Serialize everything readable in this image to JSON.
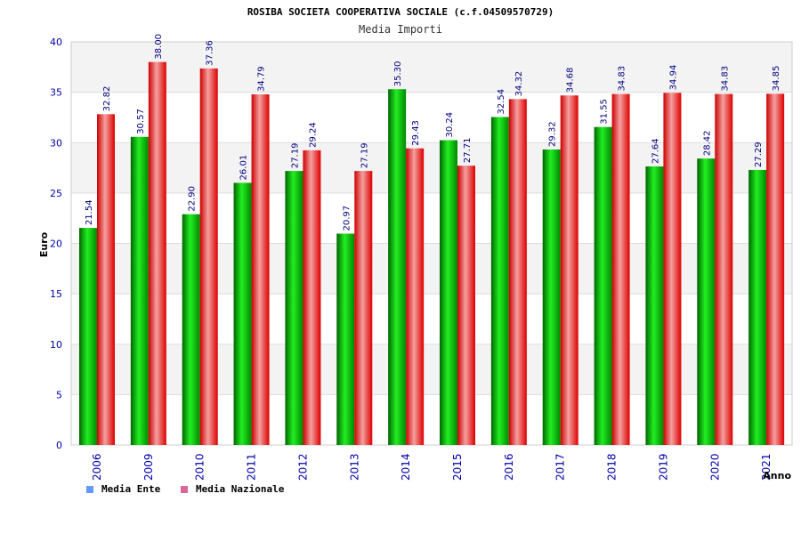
{
  "chart_data": {
    "type": "bar",
    "title": "ROSIBA SOCIETA COOPERATIVA SOCIALE (c.f.04509570729)",
    "subtitle": "Media Importi",
    "xlabel": "Anno",
    "ylabel": "Euro",
    "ylim": [
      0,
      40
    ],
    "yticks": [
      0,
      5,
      10,
      15,
      20,
      25,
      30,
      35,
      40
    ],
    "grid": true,
    "legend_position": "bottom-left",
    "categories": [
      "2006",
      "2009",
      "2010",
      "2011",
      "2012",
      "2013",
      "2014",
      "2015",
      "2016",
      "2017",
      "2018",
      "2019",
      "2020",
      "2021"
    ],
    "series": [
      {
        "name": "Media Ente",
        "color": "#00cc00",
        "legend_color": "#6699ff",
        "values": [
          21.54,
          30.57,
          22.9,
          26.01,
          27.19,
          20.97,
          35.3,
          30.24,
          32.54,
          29.32,
          31.55,
          27.64,
          28.42,
          27.29
        ],
        "labels": [
          "21.54",
          "30.57",
          "22.90",
          "26.01",
          "27.19",
          "20.97",
          "35.30",
          "30.24",
          "32.54",
          "29.32",
          "31.55",
          "27.64",
          "28.42",
          "27.29"
        ]
      },
      {
        "name": "Media Nazionale",
        "color": "#ee1111",
        "legend_color": "#dd6699",
        "values": [
          32.82,
          38.0,
          37.36,
          34.79,
          29.24,
          27.19,
          29.43,
          27.71,
          34.32,
          34.68,
          34.83,
          34.94,
          34.83,
          34.85
        ],
        "labels": [
          "32.82",
          "38.00",
          "37.36",
          "34.79",
          "29.24",
          "27.19",
          "29.43",
          "27.71",
          "34.32",
          "34.68",
          "34.83",
          "34.94",
          "34.83",
          "34.85"
        ]
      }
    ]
  }
}
